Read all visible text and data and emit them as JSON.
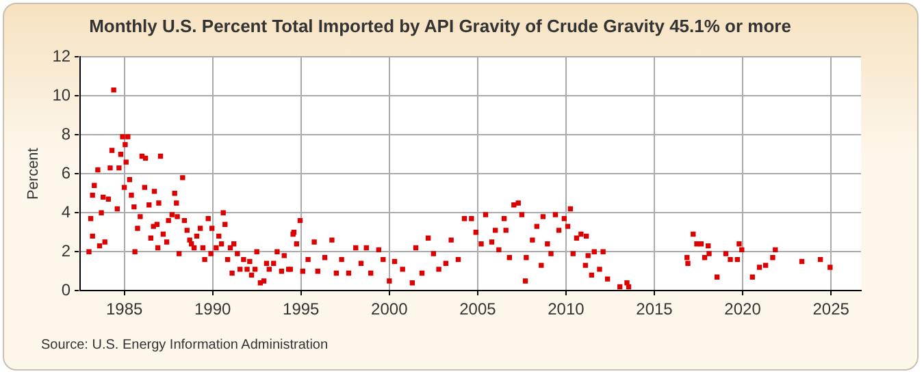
{
  "chart_data": {
    "type": "scatter",
    "title": "Monthly U.S. Percent Total Imported by API Gravity of Crude Gravity 45.1% or more",
    "ylabel": "Percent",
    "annotations": [
      "Source: U.S. Energy Information Administration"
    ],
    "x": [
      1983.0,
      1983.1,
      1983.2,
      1983.3,
      1983.2,
      1983.5,
      1983.7,
      1983.6,
      1983.9,
      1983.8,
      1984.1,
      1984.2,
      1984.4,
      1984.3,
      1984.6,
      1984.7,
      1984.8,
      1984.9,
      1985.0,
      1985.05,
      1985.2,
      1985.1,
      1985.3,
      1985.4,
      1985.55,
      1985.6,
      1985.75,
      1985.9,
      1986.0,
      1986.15,
      1986.2,
      1986.4,
      1986.5,
      1986.65,
      1986.7,
      1986.85,
      1986.9,
      1987.05,
      1986.95,
      1987.2,
      1987.4,
      1987.5,
      1987.7,
      1987.85,
      1987.95,
      1988.0,
      1988.1,
      1988.3,
      1988.4,
      1988.55,
      1988.7,
      1988.8,
      1988.95,
      1989.1,
      1989.3,
      1989.45,
      1989.55,
      1989.75,
      1989.9,
      1989.96,
      1990.2,
      1990.35,
      1990.5,
      1990.6,
      1990.7,
      1990.85,
      1991.0,
      1991.1,
      1991.2,
      1991.4,
      1991.55,
      1991.75,
      1991.95,
      1992.1,
      1992.2,
      1992.4,
      1992.5,
      1992.7,
      1992.9,
      1993.05,
      1993.2,
      1993.45,
      1993.65,
      1993.9,
      1994.05,
      1994.3,
      1994.4,
      1994.55,
      1994.75,
      1994.95,
      1995.1,
      1994.6,
      1995.4,
      1995.75,
      1995.95,
      1996.35,
      1996.75,
      1997.0,
      1997.3,
      1997.7,
      1998.1,
      1998.4,
      1998.7,
      1998.95,
      1999.4,
      1999.65,
      2000.0,
      2000.3,
      2000.75,
      2001.3,
      2001.5,
      2001.85,
      2002.2,
      2002.5,
      2002.8,
      2003.2,
      2003.5,
      2003.9,
      2004.25,
      2004.65,
      2004.9,
      2005.2,
      2005.45,
      2005.8,
      2006.0,
      2006.2,
      2006.5,
      2006.6,
      2006.8,
      2007.05,
      2007.3,
      2007.5,
      2007.7,
      2007.75,
      2008.1,
      2008.35,
      2008.6,
      2008.7,
      2008.95,
      2009.15,
      2009.4,
      2009.6,
      2009.9,
      2010.1,
      2010.25,
      2010.4,
      2010.6,
      2010.85,
      2011.25,
      2011.15,
      2011.6,
      2011.1,
      2011.45,
      2011.9,
      2012.1,
      2012.35,
      2013.05,
      2013.45,
      2013.55,
      2016.85,
      2016.9,
      2017.2,
      2017.4,
      2017.65,
      2017.85,
      2018.05,
      2018.1,
      2018.55,
      2019.05,
      2019.3,
      2019.7,
      2019.8,
      2019.95,
      2020.55,
      2020.95,
      2021.3,
      2021.7,
      2021.85,
      2023.35,
      2024.4,
      2024.95
    ],
    "values": [
      2.0,
      3.7,
      2.8,
      5.4,
      4.9,
      6.2,
      4.0,
      2.3,
      2.5,
      4.8,
      4.7,
      6.3,
      10.3,
      7.2,
      4.2,
      6.3,
      7.0,
      7.9,
      5.3,
      7.5,
      7.9,
      6.6,
      5.7,
      4.9,
      4.3,
      2.0,
      3.2,
      3.8,
      6.9,
      5.3,
      6.8,
      4.4,
      2.7,
      3.3,
      5.1,
      3.4,
      2.2,
      6.9,
      4.5,
      2.9,
      2.5,
      3.6,
      3.9,
      5.0,
      4.5,
      3.8,
      1.9,
      5.8,
      3.6,
      3.1,
      2.6,
      2.4,
      2.2,
      2.8,
      3.2,
      2.2,
      1.6,
      3.7,
      1.9,
      3.2,
      2.2,
      2.8,
      2.4,
      4.0,
      3.4,
      1.6,
      2.2,
      0.9,
      2.4,
      1.9,
      1.1,
      1.6,
      1.1,
      1.5,
      0.8,
      1.1,
      2.0,
      0.4,
      0.5,
      1.4,
      1.1,
      1.4,
      2.0,
      1.0,
      1.8,
      1.1,
      1.1,
      2.9,
      2.4,
      3.6,
      1.0,
      3.0,
      1.6,
      2.5,
      1.0,
      1.7,
      2.6,
      0.9,
      1.6,
      0.9,
      2.2,
      1.4,
      2.2,
      0.9,
      2.1,
      1.6,
      0.5,
      1.5,
      1.1,
      0.4,
      2.2,
      0.9,
      2.7,
      1.9,
      1.1,
      1.4,
      2.6,
      1.6,
      3.7,
      3.7,
      3.0,
      2.4,
      3.9,
      2.5,
      3.1,
      2.1,
      3.7,
      3.1,
      1.7,
      4.4,
      4.5,
      3.9,
      0.5,
      1.7,
      2.6,
      3.3,
      1.3,
      3.8,
      2.4,
      1.9,
      3.9,
      3.1,
      3.7,
      3.3,
      4.2,
      1.9,
      2.7,
      2.9,
      1.8,
      2.8,
      2.0,
      1.3,
      0.8,
      1.1,
      2.0,
      0.6,
      0.2,
      0.4,
      0.2,
      1.7,
      1.4,
      2.9,
      2.4,
      2.4,
      1.7,
      2.3,
      1.9,
      0.7,
      1.9,
      1.6,
      1.6,
      2.4,
      2.1,
      0.7,
      1.2,
      1.3,
      1.7,
      2.1,
      1.5,
      1.6,
      1.2
    ],
    "color": "#dd0000",
    "marker": "square",
    "xlim": [
      1982.5,
      2026.7
    ],
    "xticks": [
      1985,
      1990,
      1995,
      2000,
      2005,
      2010,
      2015,
      2020,
      2025
    ],
    "ylim": [
      0,
      12
    ],
    "yticks": [
      0,
      2,
      4,
      6,
      8,
      10,
      12
    ],
    "grid": true,
    "legend": false
  }
}
